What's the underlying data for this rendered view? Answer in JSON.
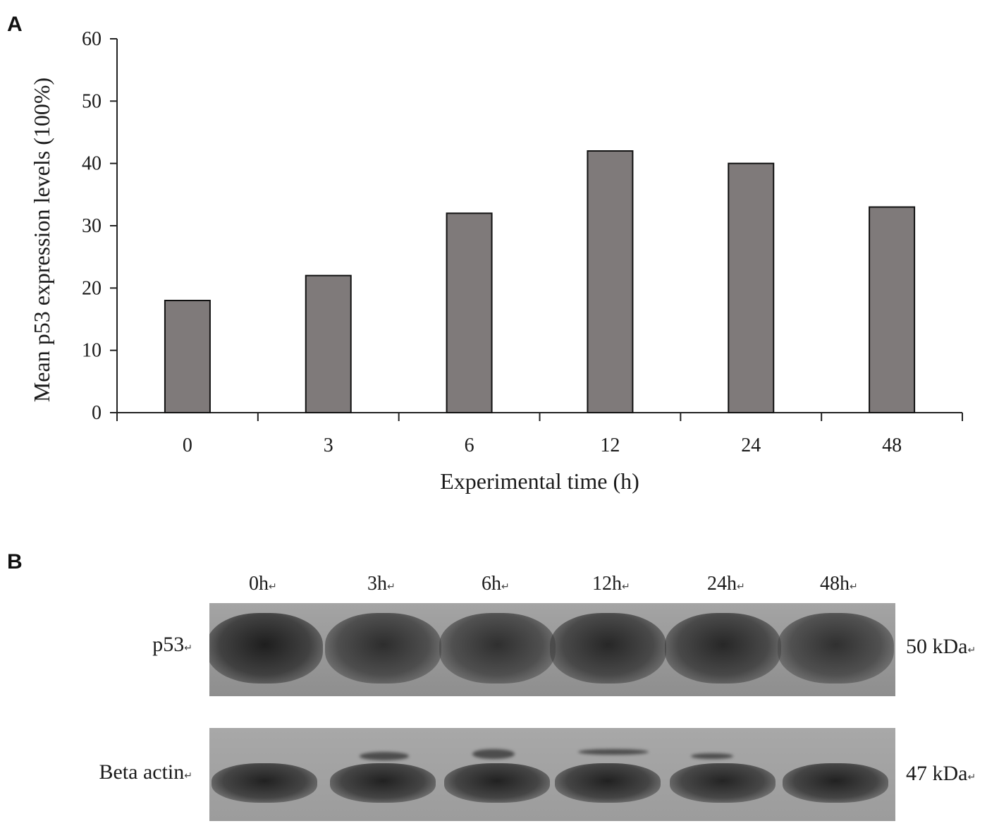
{
  "panels": {
    "a_label": "A",
    "b_label": "B"
  },
  "chart_data": {
    "type": "bar",
    "categories": [
      "0",
      "3",
      "6",
      "12",
      "24",
      "48"
    ],
    "values": [
      18,
      22,
      32,
      42,
      40,
      33
    ],
    "title": "",
    "xlabel": "Experimental time (h)",
    "ylabel": "Mean p53 expression levels (100%)",
    "ylim": [
      0,
      60
    ],
    "yticks": [
      0,
      10,
      20,
      30,
      40,
      50,
      60
    ],
    "grid": false,
    "bar_color": "#7f7a7a"
  },
  "blot": {
    "lanes": [
      "0h",
      "3h",
      "6h",
      "12h",
      "24h",
      "48h"
    ],
    "rows": [
      {
        "label": "p53",
        "kda": "50 kDa",
        "intensity": [
          1.0,
          0.75,
          0.72,
          0.85,
          0.85,
          0.7
        ]
      },
      {
        "label": "Beta actin",
        "kda": "47 kDa",
        "intensity": [
          0.95,
          0.95,
          0.95,
          0.95,
          0.9,
          0.95
        ]
      }
    ],
    "return_mark": "↵"
  }
}
